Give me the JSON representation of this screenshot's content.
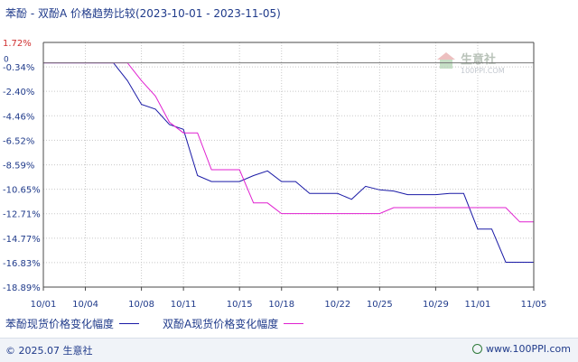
{
  "header": {
    "title": "苯酚 - 双酚A 价格趋势比较(2023-10-01 - 2023-11-05)"
  },
  "watermark": {
    "name": "生意社",
    "url": "100PPI.COM"
  },
  "footer": {
    "copyright": "© 2025.07 生意社",
    "site": "www.100PPI.com"
  },
  "colors": {
    "benzene": "#1a1aa6",
    "bpa": "#e020d0",
    "axis": "#4a4a4a",
    "grid": "#c8c8c8",
    "text": "#1f3a8a"
  },
  "chart_data": {
    "type": "line",
    "xlabel": "",
    "ylabel": "",
    "ylim": [
      -18.89,
      1.72
    ],
    "y_ticks": [
      "1.72%",
      "-0.34%",
      "-2.40%",
      "-4.46%",
      "-6.52%",
      "-8.59%",
      "-10.65%",
      "-12.71%",
      "-14.77%",
      "-16.83%",
      "-18.89%"
    ],
    "y_tick_values": [
      1.72,
      -0.34,
      -2.4,
      -4.46,
      -6.52,
      -8.59,
      -10.65,
      -12.71,
      -14.77,
      -16.83,
      -18.89
    ],
    "y_zero_label": "0",
    "x_ticks": [
      "10/01",
      "10/04",
      "10/08",
      "10/11",
      "10/15",
      "10/18",
      "10/22",
      "10/25",
      "10/29",
      "11/01",
      "11/05"
    ],
    "x_tick_values": [
      0,
      3,
      7,
      10,
      14,
      17,
      21,
      24,
      28,
      31,
      35
    ],
    "xlim": [
      0,
      35
    ],
    "series": [
      {
        "name": "苯酚现货价格变化幅度",
        "color": "#1a1aa6",
        "x": [
          0,
          5,
          6,
          7,
          8,
          9,
          10,
          11,
          12,
          13,
          14,
          15,
          16,
          17,
          18,
          19,
          20,
          21,
          22,
          23,
          24,
          25,
          26,
          27,
          28,
          29,
          30,
          31,
          32,
          33,
          34,
          35
        ],
        "y": [
          0,
          0,
          -1.5,
          -3.5,
          -3.9,
          -5.2,
          -5.6,
          -9.5,
          -10.0,
          -10.0,
          -10.0,
          -9.5,
          -9.1,
          -10.0,
          -10.0,
          -11.0,
          -11.0,
          -11.0,
          -11.5,
          -10.4,
          -10.7,
          -10.8,
          -11.1,
          -11.1,
          -11.1,
          -11.0,
          -11.0,
          -14.0,
          -14.0,
          -16.8,
          -16.8,
          -16.8
        ]
      },
      {
        "name": "双酚A现货价格变化幅度",
        "color": "#e020d0",
        "x": [
          0,
          5,
          6,
          7,
          8,
          9,
          10,
          11,
          12,
          13,
          14,
          15,
          16,
          17,
          18,
          19,
          20,
          21,
          22,
          23,
          24,
          25,
          26,
          27,
          28,
          29,
          30,
          31,
          32,
          33,
          34,
          35
        ],
        "y": [
          0,
          0,
          0,
          -1.5,
          -2.8,
          -5.0,
          -5.9,
          -5.9,
          -9.0,
          -9.0,
          -9.0,
          -11.8,
          -11.8,
          -12.7,
          -12.7,
          -12.7,
          -12.7,
          -12.7,
          -12.7,
          -12.7,
          -12.7,
          -12.2,
          -12.2,
          -12.2,
          -12.2,
          -12.2,
          -12.2,
          -12.2,
          -12.2,
          -12.2,
          -13.4,
          -13.4
        ]
      }
    ],
    "grid": true,
    "legend_position": "bottom-left"
  }
}
